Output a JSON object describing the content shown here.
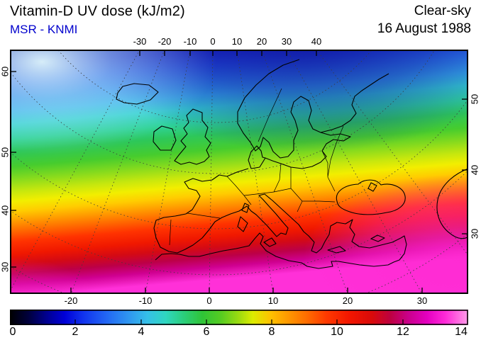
{
  "header": {
    "title": "Vitamin-D UV dose (kJ/m2)",
    "source": "MSR - KNMI",
    "condition": "Clear-sky",
    "date": "16 August 1988"
  },
  "colors": {
    "source_text": "#0000cd",
    "text": "#000000",
    "frame": "#000000",
    "graticule": "#3c3c3c",
    "coastline": "#000000"
  },
  "axes": {
    "top_lon": [
      -30,
      -20,
      -10,
      0,
      10,
      20,
      30,
      40
    ],
    "bottom_lon": [
      -20,
      -10,
      0,
      10,
      20,
      30
    ],
    "left_lat": [
      60,
      50,
      40,
      30
    ],
    "right_lat": [
      50,
      40,
      30
    ]
  },
  "colorbar": {
    "labels": [
      0,
      2,
      4,
      6,
      8,
      10,
      12,
      14
    ],
    "min": 0,
    "max": 14,
    "unit": "kJ/m2",
    "orientation": "horizontal"
  },
  "gradients": {
    "field": [
      {
        "o": "0%",
        "c": "#1518a8"
      },
      {
        "o": "8%",
        "c": "#1c2fd0"
      },
      {
        "o": "14%",
        "c": "#2558e8"
      },
      {
        "o": "20%",
        "c": "#2f86ee"
      },
      {
        "o": "26%",
        "c": "#37b2ec"
      },
      {
        "o": "31%",
        "c": "#35d2d2"
      },
      {
        "o": "37%",
        "c": "#2fd398"
      },
      {
        "o": "42%",
        "c": "#2dc75a"
      },
      {
        "o": "48%",
        "c": "#46cc2e"
      },
      {
        "o": "53%",
        "c": "#84da1e"
      },
      {
        "o": "58%",
        "c": "#c6e70e"
      },
      {
        "o": "62%",
        "c": "#f2ee00"
      },
      {
        "o": "66%",
        "c": "#ffcc00"
      },
      {
        "o": "70%",
        "c": "#ff9900"
      },
      {
        "o": "74%",
        "c": "#ff6600"
      },
      {
        "o": "78%",
        "c": "#ff3300"
      },
      {
        "o": "83%",
        "c": "#f01800"
      },
      {
        "o": "87%",
        "c": "#d40a14"
      },
      {
        "o": "91%",
        "c": "#bc0048"
      },
      {
        "o": "95%",
        "c": "#cf0090"
      },
      {
        "o": "100%",
        "c": "#ff30d8"
      }
    ],
    "bar": [
      {
        "o": "0%",
        "c": "#000000"
      },
      {
        "o": "4%",
        "c": "#00003c"
      },
      {
        "o": "8%",
        "c": "#000090"
      },
      {
        "o": "12%",
        "c": "#0000d8"
      },
      {
        "o": "16%",
        "c": "#1133ee"
      },
      {
        "o": "21%",
        "c": "#2266f4"
      },
      {
        "o": "26%",
        "c": "#2f97f0"
      },
      {
        "o": "30%",
        "c": "#35c0e8"
      },
      {
        "o": "34%",
        "c": "#2fd6c0"
      },
      {
        "o": "38%",
        "c": "#2bce7a"
      },
      {
        "o": "42%",
        "c": "#2fc437"
      },
      {
        "o": "46%",
        "c": "#55cc22"
      },
      {
        "o": "50%",
        "c": "#9ddb10"
      },
      {
        "o": "53%",
        "c": "#dcec00"
      },
      {
        "o": "57%",
        "c": "#ffc000"
      },
      {
        "o": "61%",
        "c": "#ff9500"
      },
      {
        "o": "65%",
        "c": "#ff6a00"
      },
      {
        "o": "69%",
        "c": "#ff3a00"
      },
      {
        "o": "74%",
        "c": "#f31600"
      },
      {
        "o": "79%",
        "c": "#d90a0a"
      },
      {
        "o": "83%",
        "c": "#bd0140"
      },
      {
        "o": "87%",
        "c": "#c9008c"
      },
      {
        "o": "91%",
        "c": "#e400c0"
      },
      {
        "o": "95%",
        "c": "#ff2ad8"
      },
      {
        "o": "100%",
        "c": "#ff9ce8"
      }
    ],
    "patches": [
      {
        "name": "pale-atlantic-northwest",
        "stops": [
          {
            "o": "0%",
            "c": "#e0f7fb",
            "op": 0.95
          },
          {
            "o": "40%",
            "c": "#bfeaf6",
            "op": 0.5
          },
          {
            "o": "100%",
            "c": "#bfeaf6",
            "op": 0
          }
        ]
      },
      {
        "name": "dark-arctic-north",
        "stops": [
          {
            "o": "0%",
            "c": "#0d0f96",
            "op": 0.85
          },
          {
            "o": "55%",
            "c": "#0d0f96",
            "op": 0.45
          },
          {
            "o": "100%",
            "c": "#0d0f96",
            "op": 0
          }
        ]
      },
      {
        "name": "magenta-southeast",
        "stops": [
          {
            "o": "0%",
            "c": "#ff2ad2",
            "op": 0.8
          },
          {
            "o": "60%",
            "c": "#ff2ad2",
            "op": 0.4
          },
          {
            "o": "100%",
            "c": "#ff2ad2",
            "op": 0
          }
        ]
      },
      {
        "name": "magenta-southwest",
        "stops": [
          {
            "o": "0%",
            "c": "#f322c8",
            "op": 0.7
          },
          {
            "o": "100%",
            "c": "#f322c8",
            "op": 0
          }
        ]
      }
    ]
  },
  "chart_data": {
    "type": "heatmap",
    "title": "Vitamin-D UV dose (kJ/m2)",
    "dataset": "MSR - KNMI",
    "condition": "Clear-sky",
    "date": "16 August 1988",
    "region": "Europe, North Atlantic and North Africa",
    "graticule": "curved dashed lat/lon grid (stereographic-style projection)",
    "axis_ticks": {
      "top_longitude_deg": [
        -30,
        -20,
        -10,
        0,
        10,
        20,
        30,
        40
      ],
      "bottom_longitude_deg": [
        -20,
        -10,
        0,
        10,
        20,
        30
      ],
      "left_latitude_deg": [
        60,
        50,
        40,
        30
      ],
      "right_latitude_deg": [
        50,
        40,
        30
      ]
    },
    "colorbar": {
      "min": 0,
      "max": 14,
      "unit": "kJ/m2",
      "tick_values": [
        0,
        2,
        4,
        6,
        8,
        10,
        12,
        14
      ],
      "scale": "rainbow: black-blue-cyan-green-yellow-orange-red-magenta-pink"
    },
    "field_estimates_kj_m2": [
      {
        "area": "Arctic / Barents Sea (top edge)",
        "dose": 1.5
      },
      {
        "area": "Iceland / Greenland Sea (pale patch, upper left)",
        "dose": 3
      },
      {
        "area": "Scandinavia",
        "dose": 3.5
      },
      {
        "area": "British Isles",
        "dose": 5
      },
      {
        "area": "Central Europe (Germany / Poland)",
        "dose": 6
      },
      {
        "area": "France / Alps",
        "dose": 6.5
      },
      {
        "area": "Iberia",
        "dose": 8.5
      },
      {
        "area": "Mediterranean Sea",
        "dose": 9
      },
      {
        "area": "Greece / Turkey",
        "dose": 9.5
      },
      {
        "area": "North Africa coast",
        "dose": 11
      },
      {
        "area": "Sahara (bottom edge)",
        "dose": 13
      },
      {
        "area": "Caspian lowlands (bottom right, magenta)",
        "dose": 12.5
      },
      {
        "area": "Bottom-left corner (magenta)",
        "dose": 13.5
      }
    ]
  }
}
